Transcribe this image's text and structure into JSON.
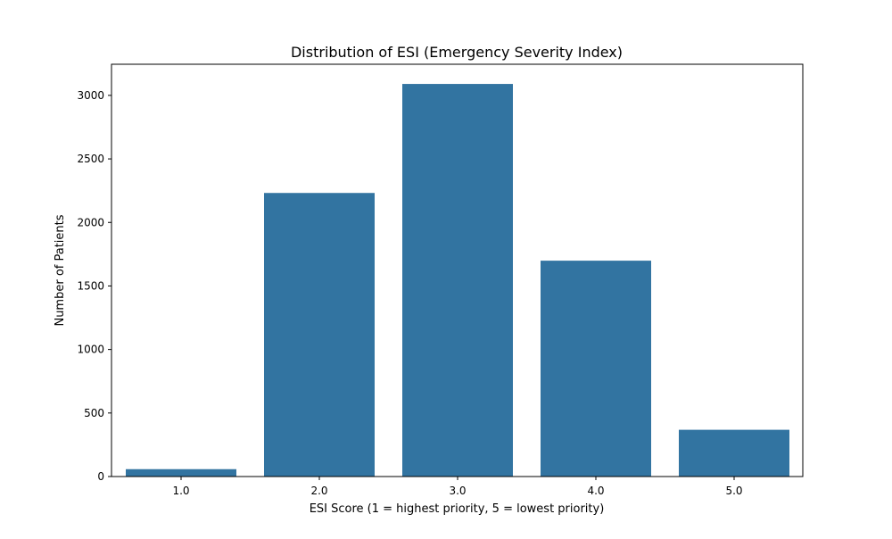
{
  "chart_data": {
    "type": "bar",
    "title": "Distribution of ESI (Emergency Severity Index)",
    "xlabel": "ESI Score (1 = highest priority, 5 = lowest priority)",
    "ylabel": "Number of Patients",
    "categories": [
      "1.0",
      "2.0",
      "3.0",
      "4.0",
      "5.0"
    ],
    "values": [
      58,
      2232,
      3090,
      1699,
      368
    ],
    "ylim": [
      0,
      3245
    ],
    "yticks": [
      0,
      500,
      1000,
      1500,
      2000,
      2500,
      3000
    ],
    "grid": false,
    "legend": "none",
    "bar_color": "#3274a1"
  }
}
